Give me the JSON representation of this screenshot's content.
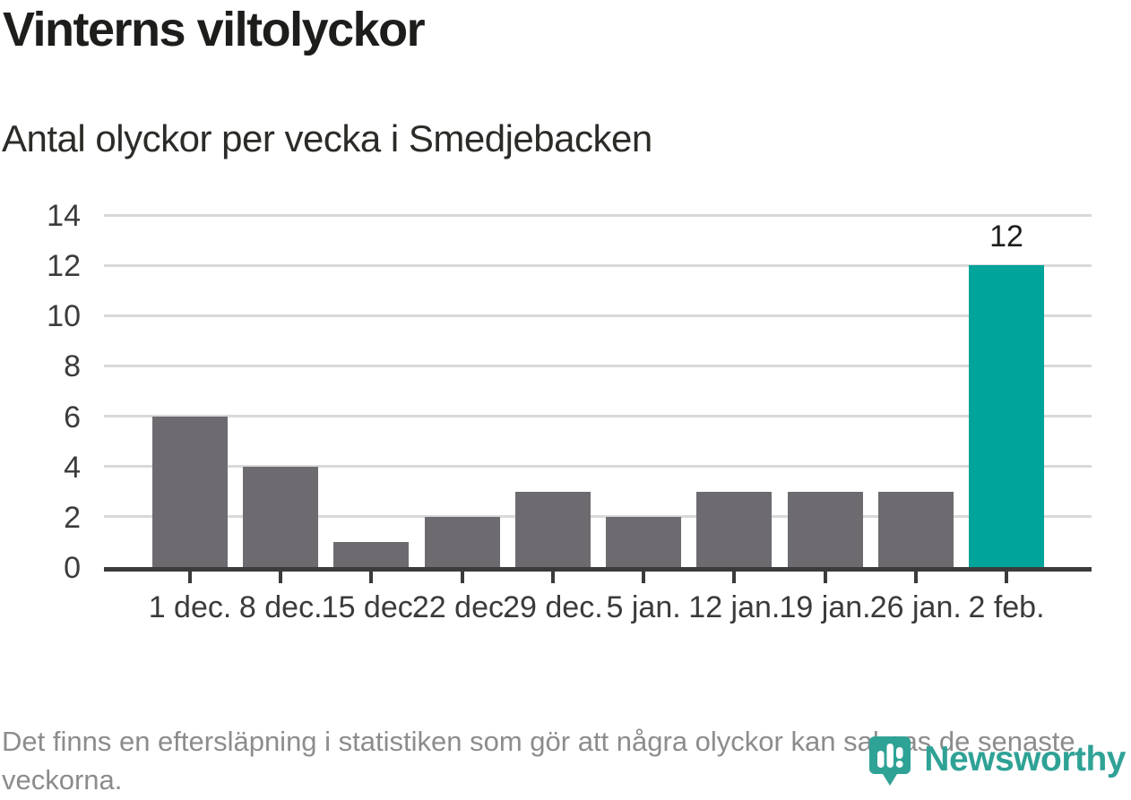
{
  "chart_data": {
    "type": "bar",
    "title": "Vinterns viltolyckor",
    "subtitle": "Antal olyckor per vecka i Smedjebacken",
    "categories": [
      "1 dec.",
      "8 dec.",
      "15 dec.",
      "22 dec.",
      "29 dec.",
      "5 jan.",
      "12 jan.",
      "19 jan.",
      "26 jan.",
      "2 feb."
    ],
    "values": [
      6,
      4,
      1,
      2,
      3,
      2,
      3,
      3,
      3,
      12
    ],
    "highlight_index": 9,
    "value_labels": [
      {
        "index": 9,
        "text": "12"
      }
    ],
    "xlabel": "",
    "ylabel": "",
    "ylim": [
      0,
      14
    ],
    "yticks": [
      0,
      2,
      4,
      6,
      8,
      10,
      12,
      14
    ],
    "grid": "horizontal",
    "legend": "none",
    "colors": {
      "bar": "#6e6b70",
      "highlight": "#00a49a",
      "grid": "#d9d9d9",
      "axis": "#3b3b3b",
      "tick_labels": "#3b3b3b",
      "value_label": "#1d1d1b"
    }
  },
  "footer": {
    "note": "Det finns en eftersläpning i statistiken som gör att några olyckor kan saknas de senaste veckorna.",
    "brand_name": "Newsworthy",
    "brand_color": "#2fa296"
  }
}
